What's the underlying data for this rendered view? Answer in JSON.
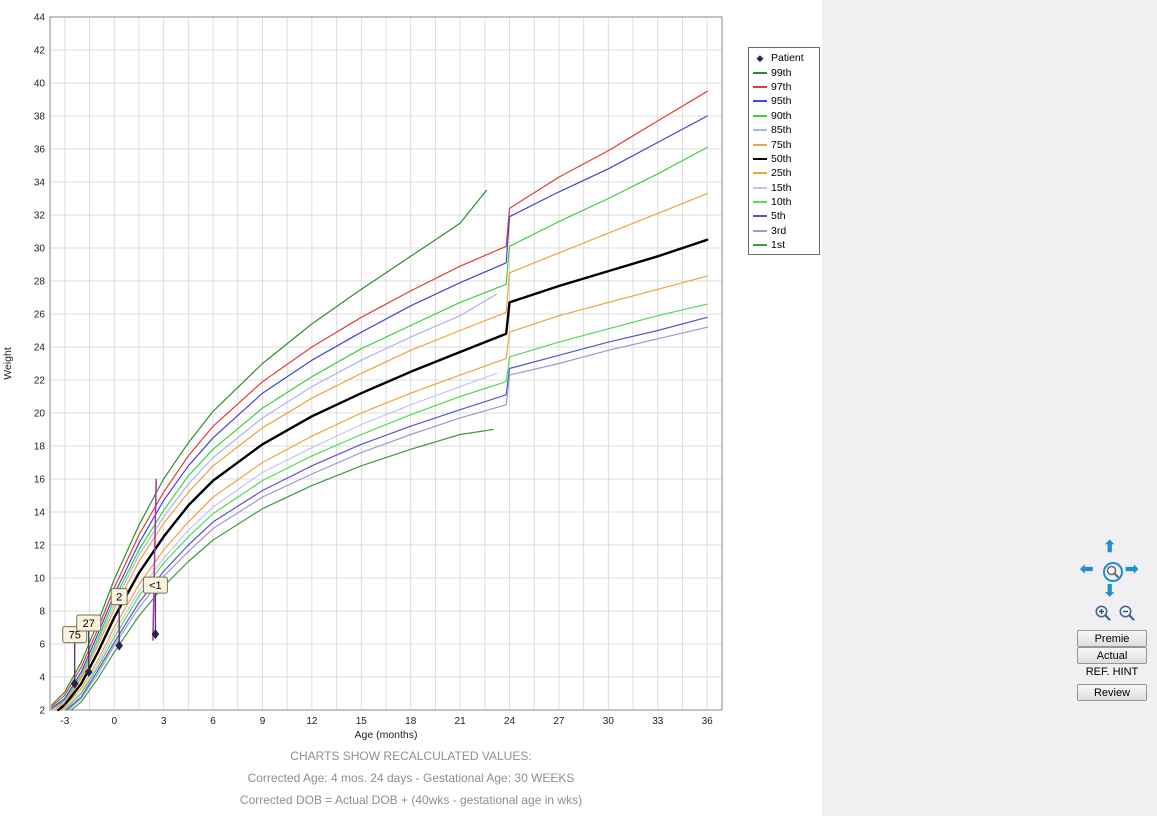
{
  "chart_data": {
    "type": "line",
    "title": "",
    "xlabel": "Age (months)",
    "ylabel": "Weight",
    "xlim": [
      -3.9,
      36.9
    ],
    "ylim": [
      2,
      44
    ],
    "grid": true,
    "x_ticks": [
      -3,
      0,
      3,
      6,
      9,
      12,
      15,
      18,
      21,
      24,
      27,
      30,
      33,
      36
    ],
    "y_ticks": [
      2,
      4,
      6,
      8,
      10,
      12,
      14,
      16,
      18,
      20,
      22,
      24,
      26,
      28,
      30,
      32,
      34,
      36,
      38,
      40,
      42,
      44
    ],
    "legend_position": "top-right",
    "patient_color": "#26264d",
    "series": [
      {
        "name": "99th",
        "color": "#2f8f2f",
        "width": 1.2,
        "points": [
          [
            -3.8,
            2.3
          ],
          [
            -3,
            3.1
          ],
          [
            -2,
            4.9
          ],
          [
            -1,
            7.3
          ],
          [
            0,
            9.9
          ],
          [
            1.5,
            13.2
          ],
          [
            3,
            16.0
          ],
          [
            4.5,
            18.2
          ],
          [
            6,
            20.1
          ],
          [
            9,
            23.0
          ],
          [
            12,
            25.4
          ],
          [
            15,
            27.5
          ],
          [
            18,
            29.5
          ],
          [
            21,
            31.5
          ],
          [
            22.6,
            33.5
          ]
        ]
      },
      {
        "name": "97th",
        "color": "#e03c3c",
        "width": 1.2,
        "points": [
          [
            -3.8,
            2.2
          ],
          [
            -3,
            2.9
          ],
          [
            -2,
            4.6
          ],
          [
            -1,
            6.9
          ],
          [
            0,
            9.4
          ],
          [
            1.5,
            12.6
          ],
          [
            3,
            15.2
          ],
          [
            4.5,
            17.4
          ],
          [
            6,
            19.2
          ],
          [
            9,
            21.9
          ],
          [
            12,
            24.0
          ],
          [
            15,
            25.8
          ],
          [
            18,
            27.4
          ],
          [
            21,
            28.9
          ],
          [
            23.8,
            30.1
          ],
          [
            24,
            32.4
          ],
          [
            27,
            34.3
          ],
          [
            30,
            35.9
          ],
          [
            33,
            37.7
          ],
          [
            36,
            39.5
          ]
        ]
      },
      {
        "name": "95th",
        "color": "#4343d6",
        "width": 1.2,
        "points": [
          [
            -3.8,
            2.1
          ],
          [
            -3,
            2.7
          ],
          [
            -2,
            4.3
          ],
          [
            -1,
            6.6
          ],
          [
            0,
            9.0
          ],
          [
            1.5,
            12.1
          ],
          [
            3,
            14.7
          ],
          [
            4.5,
            16.8
          ],
          [
            6,
            18.5
          ],
          [
            9,
            21.2
          ],
          [
            12,
            23.2
          ],
          [
            15,
            24.9
          ],
          [
            18,
            26.5
          ],
          [
            21,
            27.9
          ],
          [
            23.8,
            29.1
          ],
          [
            24,
            31.9
          ],
          [
            27,
            33.4
          ],
          [
            30,
            34.8
          ],
          [
            33,
            36.4
          ],
          [
            36,
            38.0
          ]
        ]
      },
      {
        "name": "90th",
        "color": "#3ecf3e",
        "width": 1.2,
        "points": [
          [
            -3.7,
            2.1
          ],
          [
            -3,
            2.6
          ],
          [
            -2,
            4.1
          ],
          [
            -1,
            6.3
          ],
          [
            0,
            8.7
          ],
          [
            1.5,
            11.7
          ],
          [
            3,
            14.1
          ],
          [
            4.5,
            16.2
          ],
          [
            6,
            17.8
          ],
          [
            9,
            20.3
          ],
          [
            12,
            22.2
          ],
          [
            15,
            23.9
          ],
          [
            18,
            25.3
          ],
          [
            21,
            26.7
          ],
          [
            23.8,
            27.8
          ],
          [
            24,
            30.1
          ],
          [
            27,
            31.6
          ],
          [
            30,
            33.0
          ],
          [
            33,
            34.5
          ],
          [
            36,
            36.1
          ]
        ]
      },
      {
        "name": "85th",
        "color": "#a9b6ea",
        "width": 1.2,
        "points": [
          [
            -3.65,
            2.1
          ],
          [
            -3,
            2.5
          ],
          [
            -2,
            4.0
          ],
          [
            -1,
            6.1
          ],
          [
            0,
            8.4
          ],
          [
            1.5,
            11.4
          ],
          [
            3,
            13.7
          ],
          [
            4.5,
            15.7
          ],
          [
            6,
            17.3
          ],
          [
            9,
            19.7
          ],
          [
            12,
            21.6
          ],
          [
            15,
            23.2
          ],
          [
            18,
            24.6
          ],
          [
            21,
            25.9
          ],
          [
            23.2,
            27.2
          ]
        ]
      },
      {
        "name": "75th",
        "color": "#f0a23c",
        "width": 1.2,
        "points": [
          [
            -3.55,
            2.1
          ],
          [
            -3,
            2.4
          ],
          [
            -2,
            3.9
          ],
          [
            -1,
            5.9
          ],
          [
            0,
            8.1
          ],
          [
            1.5,
            11.0
          ],
          [
            3,
            13.3
          ],
          [
            4.5,
            15.2
          ],
          [
            6,
            16.8
          ],
          [
            9,
            19.1
          ],
          [
            12,
            20.9
          ],
          [
            15,
            22.4
          ],
          [
            18,
            23.8
          ],
          [
            21,
            25.0
          ],
          [
            23.8,
            26.1
          ],
          [
            24,
            28.5
          ],
          [
            27,
            29.7
          ],
          [
            30,
            30.9
          ],
          [
            33,
            32.1
          ],
          [
            36,
            33.3
          ]
        ]
      },
      {
        "name": "50th",
        "color": "#000000",
        "width": 2.4,
        "points": [
          [
            -3.4,
            2.0
          ],
          [
            -3,
            2.3
          ],
          [
            -2,
            3.6
          ],
          [
            -1,
            5.5
          ],
          [
            0,
            7.6
          ],
          [
            1.5,
            10.3
          ],
          [
            3,
            12.5
          ],
          [
            4.5,
            14.4
          ],
          [
            6,
            15.9
          ],
          [
            9,
            18.1
          ],
          [
            12,
            19.8
          ],
          [
            15,
            21.2
          ],
          [
            18,
            22.5
          ],
          [
            21,
            23.7
          ],
          [
            23.8,
            24.8
          ],
          [
            24,
            26.7
          ],
          [
            27,
            27.7
          ],
          [
            30,
            28.6
          ],
          [
            33,
            29.5
          ],
          [
            36,
            30.5
          ]
        ]
      },
      {
        "name": "25th",
        "color": "#f0a23c",
        "width": 1.2,
        "points": [
          [
            -3.2,
            2.0
          ],
          [
            -3,
            2.2
          ],
          [
            -2,
            3.3
          ],
          [
            -1,
            5.0
          ],
          [
            0,
            7.0
          ],
          [
            1.5,
            9.6
          ],
          [
            3,
            11.7
          ],
          [
            4.5,
            13.4
          ],
          [
            6,
            14.9
          ],
          [
            9,
            17.0
          ],
          [
            12,
            18.6
          ],
          [
            15,
            20.0
          ],
          [
            18,
            21.2
          ],
          [
            21,
            22.3
          ],
          [
            23.8,
            23.3
          ],
          [
            24,
            24.9
          ],
          [
            27,
            25.9
          ],
          [
            30,
            26.7
          ],
          [
            33,
            27.5
          ],
          [
            36,
            28.3
          ]
        ]
      },
      {
        "name": "15th",
        "color": "#c4c6f0",
        "width": 1.2,
        "points": [
          [
            -3.1,
            2.0
          ],
          [
            -3,
            2.1
          ],
          [
            -2,
            3.1
          ],
          [
            -1,
            4.8
          ],
          [
            0,
            6.7
          ],
          [
            1.5,
            9.2
          ],
          [
            3,
            11.2
          ],
          [
            4.5,
            12.9
          ],
          [
            6,
            14.3
          ],
          [
            9,
            16.4
          ],
          [
            12,
            17.9
          ],
          [
            15,
            19.3
          ],
          [
            18,
            20.5
          ],
          [
            21,
            21.6
          ],
          [
            23.2,
            22.4
          ]
        ]
      },
      {
        "name": "10th",
        "color": "#54da54",
        "width": 1.2,
        "points": [
          [
            -3.0,
            2.0
          ],
          [
            -2,
            3.0
          ],
          [
            -1,
            4.6
          ],
          [
            0,
            6.4
          ],
          [
            1.5,
            8.9
          ],
          [
            3,
            10.9
          ],
          [
            4.5,
            12.5
          ],
          [
            6,
            13.9
          ],
          [
            9,
            15.9
          ],
          [
            12,
            17.4
          ],
          [
            15,
            18.7
          ],
          [
            18,
            19.9
          ],
          [
            21,
            21.0
          ],
          [
            23.8,
            21.9
          ],
          [
            24,
            23.4
          ],
          [
            27,
            24.3
          ],
          [
            30,
            25.1
          ],
          [
            33,
            25.9
          ],
          [
            36,
            26.6
          ]
        ]
      },
      {
        "name": "5th",
        "color": "#5555cf",
        "width": 1.2,
        "points": [
          [
            -2.9,
            2.0
          ],
          [
            -2,
            2.8
          ],
          [
            -1,
            4.4
          ],
          [
            0,
            6.1
          ],
          [
            1.5,
            8.5
          ],
          [
            3,
            10.4
          ],
          [
            4.5,
            12.0
          ],
          [
            6,
            13.4
          ],
          [
            9,
            15.3
          ],
          [
            12,
            16.8
          ],
          [
            15,
            18.1
          ],
          [
            18,
            19.2
          ],
          [
            21,
            20.2
          ],
          [
            23.8,
            21.1
          ],
          [
            24,
            22.7
          ],
          [
            27,
            23.5
          ],
          [
            30,
            24.3
          ],
          [
            33,
            25.0
          ],
          [
            36,
            25.8
          ]
        ]
      },
      {
        "name": "3rd",
        "color": "#9a9ad0",
        "width": 1.2,
        "points": [
          [
            -2.8,
            2.0
          ],
          [
            -2,
            2.7
          ],
          [
            -1,
            4.2
          ],
          [
            0,
            5.9
          ],
          [
            1.5,
            8.2
          ],
          [
            3,
            10.1
          ],
          [
            4.5,
            11.6
          ],
          [
            6,
            13.0
          ],
          [
            9,
            14.9
          ],
          [
            12,
            16.3
          ],
          [
            15,
            17.6
          ],
          [
            18,
            18.7
          ],
          [
            21,
            19.7
          ],
          [
            23.8,
            20.5
          ],
          [
            24,
            22.3
          ],
          [
            27,
            23.0
          ],
          [
            30,
            23.8
          ],
          [
            33,
            24.5
          ],
          [
            36,
            25.2
          ]
        ]
      },
      {
        "name": "1st",
        "color": "#3f9b3f",
        "width": 1.2,
        "points": [
          [
            -2.6,
            2.0
          ],
          [
            -2,
            2.5
          ],
          [
            -1,
            3.9
          ],
          [
            0,
            5.5
          ],
          [
            1.5,
            7.7
          ],
          [
            3,
            9.5
          ],
          [
            4.5,
            11.0
          ],
          [
            6,
            12.3
          ],
          [
            9,
            14.2
          ],
          [
            12,
            15.6
          ],
          [
            15,
            16.8
          ],
          [
            18,
            17.8
          ],
          [
            21,
            18.7
          ],
          [
            23,
            19.0
          ]
        ]
      }
    ],
    "transition_line": {
      "name": "premie-transition",
      "color": "#b12fb1",
      "width": 1.5,
      "points": [
        [
          2.35,
          6.2
        ],
        [
          2.55,
          16.0
        ]
      ]
    },
    "patient_points": [
      {
        "m": -2.4,
        "v": 3.6,
        "label": "75"
      },
      {
        "m": -1.55,
        "v": 4.3,
        "label": "27"
      },
      {
        "m": 0.3,
        "v": 5.9,
        "label": "2"
      },
      {
        "m": 2.5,
        "v": 6.6,
        "label": "<1"
      }
    ]
  },
  "legend": {
    "items": [
      {
        "label": "Patient",
        "type": "diamond",
        "color": "#26264d"
      },
      {
        "label": "99th",
        "type": "line",
        "color": "#2f8f2f"
      },
      {
        "label": "97th",
        "type": "line",
        "color": "#e03c3c"
      },
      {
        "label": "95th",
        "type": "line",
        "color": "#4343d6"
      },
      {
        "label": "90th",
        "type": "line",
        "color": "#3ecf3e"
      },
      {
        "label": "85th",
        "type": "line",
        "color": "#a9b6ea"
      },
      {
        "label": "75th",
        "type": "line",
        "color": "#f0a23c"
      },
      {
        "label": "50th",
        "type": "line",
        "color": "#000000"
      },
      {
        "label": "25th",
        "type": "line",
        "color": "#f0a23c"
      },
      {
        "label": "15th",
        "type": "line",
        "color": "#c4c6f0"
      },
      {
        "label": "10th",
        "type": "line",
        "color": "#54da54"
      },
      {
        "label": "5th",
        "type": "line",
        "color": "#5555cf"
      },
      {
        "label": "3rd",
        "type": "line",
        "color": "#9a9ad0"
      },
      {
        "label": "1st",
        "type": "line",
        "color": "#3f9b3f"
      }
    ]
  },
  "controls": {
    "premie": "Premie",
    "actual": "Actual",
    "ref_hint": "REF. HINT",
    "review": "Review",
    "arrow_color": "#1e8fd8"
  },
  "footer": {
    "line1": "CHARTS SHOW RECALCULATED VALUES:",
    "line2": "Corrected Age: 4 mos. 24 days - Gestational Age: 30 WEEKS",
    "line3": "Corrected DOB = Actual DOB + (40wks - gestational age in wks)"
  }
}
